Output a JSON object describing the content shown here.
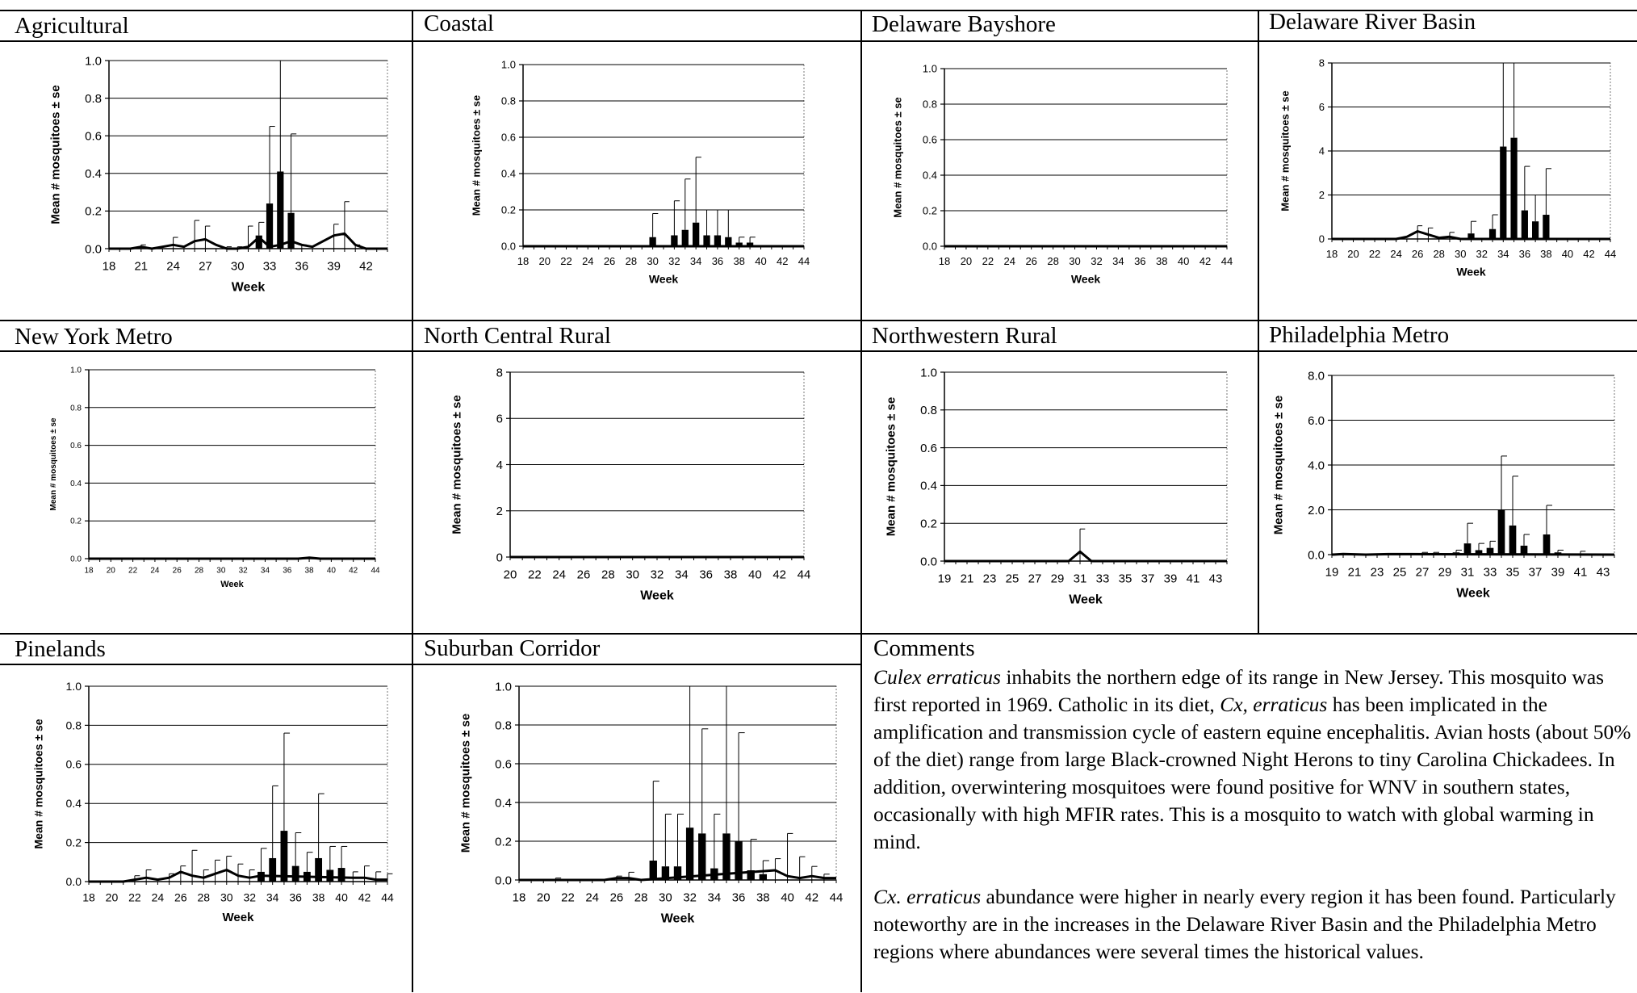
{
  "panels": [
    {
      "id": "agricultural",
      "title": "Agricultural"
    },
    {
      "id": "coastal",
      "title": "Coastal"
    },
    {
      "id": "delaware-bayshore",
      "title": "Delaware Bayshore"
    },
    {
      "id": "delaware-river-basin",
      "title": "Delaware River Basin"
    },
    {
      "id": "new-york-metro",
      "title": "New York Metro"
    },
    {
      "id": "north-central-rural",
      "title": "North Central Rural"
    },
    {
      "id": "northwestern-rural",
      "title": "Northwestern Rural"
    },
    {
      "id": "philadelphia-metro",
      "title": "Philadelphia Metro"
    },
    {
      "id": "pinelands",
      "title": "Pinelands"
    },
    {
      "id": "suburban-corridor",
      "title": "Suburban Corridor"
    }
  ],
  "comments": {
    "title": "Comments",
    "p1_species": "Culex erraticus",
    "p1_a": " inhabits the northern edge of its range in New Jersey. This mosquito was first reported in 1969. Catholic in its diet, ",
    "p1_species2": "Cx, erraticus",
    "p1_b": " has been implicated in the amplification and transmission cycle of eastern equine encephalitis. Avian hosts (about 50% of the diet) range from large Black-crowned Night Herons to tiny Carolina Chickadees. In addition, overwintering mosquitoes were found positive for WNV in southern states, occasionally with high MFIR rates. This is a mosquito to watch with global warming in mind.",
    "p2_species": "Cx. erraticus",
    "p2_a": " abundance were higher in nearly every region it has been found. Particularly noteworthy are in the increases in the Delaware River Basin and the Philadelphia Metro regions where abundances were several times the historical values."
  },
  "chart_data": [
    {
      "type": "bar",
      "title": "Agricultural",
      "xlabel": "Week",
      "ylabel": "Mean # mosquitoes ± se",
      "xlim": [
        18,
        44
      ],
      "ylim": [
        0,
        1.0
      ],
      "xticks": [
        18,
        21,
        24,
        27,
        30,
        33,
        36,
        39,
        42
      ],
      "yticks": [
        0,
        0.2,
        0.4,
        0.6,
        0.8,
        1.0
      ],
      "ytick_labels": [
        "0.0",
        "0.2",
        "0.4",
        "0.6",
        "0.8",
        "1.0"
      ],
      "grid": true,
      "bars": [
        {
          "x": 32,
          "y": 0.07,
          "se": 0.14
        },
        {
          "x": 33,
          "y": 0.24,
          "se": 0.65
        },
        {
          "x": 34,
          "y": 0.41,
          "se": 1.0
        },
        {
          "x": 35,
          "y": 0.19,
          "se": 0.61
        }
      ],
      "line": [
        [
          18,
          0
        ],
        [
          20,
          0
        ],
        [
          21,
          0.01
        ],
        [
          22,
          0
        ],
        [
          23,
          0.01
        ],
        [
          24,
          0.02
        ],
        [
          25,
          0.01
        ],
        [
          26,
          0.04
        ],
        [
          27,
          0.05
        ],
        [
          28,
          0.02
        ],
        [
          29,
          0
        ],
        [
          30,
          0
        ],
        [
          31,
          0.01
        ],
        [
          32,
          0.06
        ],
        [
          33,
          0.01
        ],
        [
          34,
          0.02
        ],
        [
          35,
          0.04
        ],
        [
          36,
          0.02
        ],
        [
          37,
          0.01
        ],
        [
          38,
          0.04
        ],
        [
          39,
          0.07
        ],
        [
          40,
          0.08
        ],
        [
          41,
          0.02
        ],
        [
          42,
          0
        ],
        [
          43,
          0
        ],
        [
          44,
          0
        ]
      ],
      "line_err": [
        [
          21,
          0.02
        ],
        [
          24,
          0.06
        ],
        [
          26,
          0.15
        ],
        [
          27,
          0.12
        ],
        [
          29,
          0.01
        ],
        [
          30,
          0.01
        ],
        [
          31,
          0.12
        ],
        [
          36,
          0.02
        ],
        [
          39,
          0.13
        ],
        [
          40,
          0.25
        ],
        [
          41,
          0.02
        ]
      ]
    },
    {
      "type": "bar",
      "title": "Coastal",
      "xlabel": "Week",
      "ylabel": "Mean # mosquitoes ± se",
      "xlim": [
        18,
        44
      ],
      "ylim": [
        0,
        1.0
      ],
      "xticks": [
        18,
        20,
        22,
        24,
        26,
        28,
        30,
        32,
        34,
        36,
        38,
        40,
        42,
        44
      ],
      "yticks": [
        0,
        0.2,
        0.4,
        0.6,
        0.8,
        1.0
      ],
      "ytick_labels": [
        "0.0",
        "0.2",
        "0.4",
        "0.6",
        "0.8",
        "1.0"
      ],
      "grid": true,
      "bars": [
        {
          "x": 30,
          "y": 0.05,
          "se": 0.18
        },
        {
          "x": 32,
          "y": 0.06,
          "se": 0.25
        },
        {
          "x": 33,
          "y": 0.09,
          "se": 0.37
        },
        {
          "x": 34,
          "y": 0.13,
          "se": 0.49
        },
        {
          "x": 35,
          "y": 0.06,
          "se": 0.2
        },
        {
          "x": 36,
          "y": 0.06,
          "se": 0.2
        },
        {
          "x": 37,
          "y": 0.05,
          "se": 0.2
        },
        {
          "x": 38,
          "y": 0.02,
          "se": 0.05
        },
        {
          "x": 39,
          "y": 0.02,
          "se": 0.05
        }
      ],
      "line": [
        [
          18,
          0
        ],
        [
          44,
          0
        ]
      ],
      "line_err": []
    },
    {
      "type": "bar",
      "title": "Delaware Bayshore",
      "xlabel": "Week",
      "ylabel": "Mean # mosquitoes ± se",
      "xlim": [
        18,
        44
      ],
      "ylim": [
        0,
        1.0
      ],
      "xticks": [
        18,
        20,
        22,
        24,
        26,
        28,
        30,
        32,
        34,
        36,
        38,
        40,
        42,
        44
      ],
      "yticks": [
        0,
        0.2,
        0.4,
        0.6,
        0.8,
        1.0
      ],
      "ytick_labels": [
        "0.0",
        "0.2",
        "0.4",
        "0.6",
        "0.8",
        "1.0"
      ],
      "grid": true,
      "bars": [],
      "line": [
        [
          18,
          0
        ],
        [
          44,
          0
        ]
      ],
      "line_err": []
    },
    {
      "type": "bar",
      "title": "Delaware River Basin",
      "xlabel": "Week",
      "ylabel": "Mean # mosquitoes ± se",
      "xlim": [
        18,
        44
      ],
      "ylim": [
        0,
        8
      ],
      "xticks": [
        18,
        20,
        22,
        24,
        26,
        28,
        30,
        32,
        34,
        36,
        38,
        40,
        42,
        44
      ],
      "yticks": [
        0,
        2,
        4,
        6,
        8
      ],
      "ytick_labels": [
        "0",
        "2",
        "4",
        "6",
        "8"
      ],
      "grid": true,
      "bars": [
        {
          "x": 31,
          "y": 0.25,
          "se": 0.8
        },
        {
          "x": 33,
          "y": 0.45,
          "se": 1.1
        },
        {
          "x": 34,
          "y": 4.2,
          "se": 8
        },
        {
          "x": 35,
          "y": 4.6,
          "se": 8
        },
        {
          "x": 36,
          "y": 1.3,
          "se": 3.3
        },
        {
          "x": 37,
          "y": 0.8,
          "se": 2.0
        },
        {
          "x": 38,
          "y": 1.1,
          "se": 3.2
        }
      ],
      "line": [
        [
          18,
          0
        ],
        [
          24,
          0
        ],
        [
          25,
          0.1
        ],
        [
          26,
          0.35
        ],
        [
          27,
          0.2
        ],
        [
          28,
          0.05
        ],
        [
          29,
          0.1
        ],
        [
          30,
          0
        ],
        [
          44,
          0
        ]
      ],
      "line_err": [
        [
          26,
          0.6
        ],
        [
          27,
          0.5
        ],
        [
          29,
          0.3
        ]
      ]
    },
    {
      "type": "bar",
      "title": "New York Metro",
      "xlabel": "Week",
      "ylabel": "Mean # mosquitoes ± se",
      "xlim": [
        18,
        44
      ],
      "ylim": [
        0,
        1.0
      ],
      "xticks": [
        18,
        20,
        22,
        24,
        26,
        28,
        30,
        32,
        34,
        36,
        38,
        40,
        42,
        44
      ],
      "yticks": [
        0,
        0.2,
        0.4,
        0.6,
        0.8,
        1.0
      ],
      "ytick_labels": [
        "0.0",
        "0.2",
        "0.4",
        "0.6",
        "0.8",
        "1.0"
      ],
      "grid": true,
      "bars": [],
      "line": [
        [
          18,
          0
        ],
        [
          37,
          0
        ],
        [
          38,
          0.005
        ],
        [
          39,
          0
        ],
        [
          44,
          0
        ]
      ],
      "line_err": []
    },
    {
      "type": "bar",
      "title": "North Central Rural",
      "xlabel": "Week",
      "ylabel": "Mean # mosquitoes ± se",
      "xlim": [
        20,
        44
      ],
      "ylim": [
        0,
        8
      ],
      "xticks": [
        20,
        22,
        24,
        26,
        28,
        30,
        32,
        34,
        36,
        38,
        40,
        42,
        44
      ],
      "yticks": [
        0,
        2,
        4,
        6,
        8
      ],
      "ytick_labels": [
        "0",
        "2",
        "4",
        "6",
        "8"
      ],
      "grid": true,
      "bars": [],
      "line": [
        [
          20,
          0
        ],
        [
          44,
          0
        ]
      ],
      "line_err": []
    },
    {
      "type": "bar",
      "title": "Northwestern Rural",
      "xlabel": "Week",
      "ylabel": "Mean # mosquitoes ± se",
      "xlim": [
        19,
        44
      ],
      "ylim": [
        0,
        1.0
      ],
      "xticks": [
        19,
        21,
        23,
        25,
        27,
        29,
        31,
        33,
        35,
        37,
        39,
        41,
        43
      ],
      "yticks": [
        0,
        0.2,
        0.4,
        0.6,
        0.8,
        1.0
      ],
      "ytick_labels": [
        "0.0",
        "0.2",
        "0.4",
        "0.6",
        "0.8",
        "1.0"
      ],
      "grid": true,
      "bars": [],
      "line": [
        [
          19,
          0
        ],
        [
          30,
          0
        ],
        [
          31,
          0.05
        ],
        [
          32,
          0
        ],
        [
          44,
          0
        ]
      ],
      "line_err": [
        [
          31,
          0.17
        ]
      ]
    },
    {
      "type": "bar",
      "title": "Philadelphia Metro",
      "xlabel": "Week",
      "ylabel": "Mean # mosquitoes ± se",
      "xlim": [
        19,
        44
      ],
      "ylim": [
        0,
        8.0
      ],
      "xticks": [
        19,
        21,
        23,
        25,
        27,
        29,
        31,
        33,
        35,
        37,
        39,
        41,
        43
      ],
      "yticks": [
        0,
        2,
        4,
        6,
        8
      ],
      "ytick_labels": [
        "0.0",
        "2.0",
        "4.0",
        "6.0",
        "8.0"
      ],
      "grid": true,
      "bars": [
        {
          "x": 27,
          "y": 0.05,
          "se": 0.1
        },
        {
          "x": 28,
          "y": 0.05,
          "se": 0.1
        },
        {
          "x": 30,
          "y": 0.1,
          "se": 0.2
        },
        {
          "x": 31,
          "y": 0.5,
          "se": 1.4
        },
        {
          "x": 32,
          "y": 0.2,
          "se": 0.5
        },
        {
          "x": 33,
          "y": 0.3,
          "se": 0.6
        },
        {
          "x": 34,
          "y": 2.0,
          "se": 4.4
        },
        {
          "x": 35,
          "y": 1.3,
          "se": 3.5
        },
        {
          "x": 36,
          "y": 0.4,
          "se": 0.9
        },
        {
          "x": 38,
          "y": 0.9,
          "se": 2.2
        },
        {
          "x": 39,
          "y": 0.1,
          "se": 0.2
        }
      ],
      "line": [
        [
          19,
          0
        ],
        [
          20,
          0.03
        ],
        [
          22,
          0
        ],
        [
          24,
          0.02
        ],
        [
          26,
          0.02
        ],
        [
          44,
          0
        ]
      ],
      "line_err": [
        [
          41,
          0.15
        ]
      ]
    },
    {
      "type": "bar",
      "title": "Pinelands",
      "xlabel": "Week",
      "ylabel": "Mean # mosquitoes ± se",
      "xlim": [
        18,
        44
      ],
      "ylim": [
        0,
        1.0
      ],
      "xticks": [
        18,
        20,
        22,
        24,
        26,
        28,
        30,
        32,
        34,
        36,
        38,
        40,
        42,
        44
      ],
      "yticks": [
        0,
        0.2,
        0.4,
        0.6,
        0.8,
        1.0
      ],
      "ytick_labels": [
        "0.0",
        "0.2",
        "0.4",
        "0.6",
        "0.8",
        "1.0"
      ],
      "grid": true,
      "bars": [
        {
          "x": 33,
          "y": 0.05,
          "se": 0.17
        },
        {
          "x": 34,
          "y": 0.12,
          "se": 0.49
        },
        {
          "x": 35,
          "y": 0.26,
          "se": 0.76
        },
        {
          "x": 36,
          "y": 0.08,
          "se": 0.25
        },
        {
          "x": 37,
          "y": 0.05,
          "se": 0.15
        },
        {
          "x": 38,
          "y": 0.12,
          "se": 0.45
        },
        {
          "x": 39,
          "y": 0.06,
          "se": 0.18
        },
        {
          "x": 40,
          "y": 0.07,
          "se": 0.18
        }
      ],
      "line": [
        [
          18,
          0
        ],
        [
          21,
          0
        ],
        [
          22,
          0.01
        ],
        [
          23,
          0.02
        ],
        [
          24,
          0.01
        ],
        [
          25,
          0.02
        ],
        [
          26,
          0.05
        ],
        [
          27,
          0.03
        ],
        [
          28,
          0.02
        ],
        [
          29,
          0.04
        ],
        [
          30,
          0.06
        ],
        [
          31,
          0.03
        ],
        [
          32,
          0.02
        ],
        [
          33,
          0.03
        ],
        [
          41,
          0.02
        ],
        [
          42,
          0.02
        ],
        [
          43,
          0.01
        ],
        [
          44,
          0.01
        ]
      ],
      "line_err": [
        [
          22,
          0.03
        ],
        [
          23,
          0.06
        ],
        [
          25,
          0.04
        ],
        [
          26,
          0.08
        ],
        [
          27,
          0.16
        ],
        [
          28,
          0.06
        ],
        [
          29,
          0.11
        ],
        [
          30,
          0.13
        ],
        [
          31,
          0.09
        ],
        [
          32,
          0.06
        ],
        [
          41,
          0.05
        ],
        [
          42,
          0.08
        ],
        [
          43,
          0.05
        ],
        [
          44,
          0.04
        ]
      ]
    },
    {
      "type": "bar",
      "title": "Suburban Corridor",
      "xlabel": "Week",
      "ylabel": "Mean # mosquitoes ± se",
      "xlim": [
        18,
        44
      ],
      "ylim": [
        0,
        1.0
      ],
      "xticks": [
        18,
        20,
        22,
        24,
        26,
        28,
        30,
        32,
        34,
        36,
        38,
        40,
        42,
        44
      ],
      "yticks": [
        0,
        0.2,
        0.4,
        0.6,
        0.8,
        1.0
      ],
      "ytick_labels": [
        "0.0",
        "0.2",
        "0.4",
        "0.6",
        "0.8",
        "1.0"
      ],
      "grid": true,
      "bars": [
        {
          "x": 29,
          "y": 0.1,
          "se": 0.51
        },
        {
          "x": 30,
          "y": 0.07,
          "se": 0.34
        },
        {
          "x": 31,
          "y": 0.07,
          "se": 0.34
        },
        {
          "x": 32,
          "y": 0.27,
          "se": 1.0
        },
        {
          "x": 33,
          "y": 0.24,
          "se": 0.78
        },
        {
          "x": 34,
          "y": 0.06,
          "se": 0.34
        },
        {
          "x": 35,
          "y": 0.24,
          "se": 1.0
        },
        {
          "x": 36,
          "y": 0.2,
          "se": 0.76
        },
        {
          "x": 37,
          "y": 0.05,
          "se": 0.21
        },
        {
          "x": 38,
          "y": 0.03,
          "se": 0.1
        }
      ],
      "line": [
        [
          18,
          0
        ],
        [
          25,
          0
        ],
        [
          26,
          0.01
        ],
        [
          27,
          0.01
        ],
        [
          28,
          0
        ],
        [
          39,
          0.05
        ],
        [
          40,
          0.02
        ],
        [
          41,
          0.01
        ],
        [
          42,
          0.02
        ],
        [
          43,
          0.01
        ],
        [
          44,
          0.01
        ]
      ],
      "line_err": [
        [
          21,
          0.01
        ],
        [
          26,
          0.02
        ],
        [
          27,
          0.04
        ],
        [
          39,
          0.11
        ],
        [
          40,
          0.24
        ],
        [
          41,
          0.12
        ],
        [
          42,
          0.07
        ],
        [
          43,
          0.03
        ]
      ]
    }
  ]
}
